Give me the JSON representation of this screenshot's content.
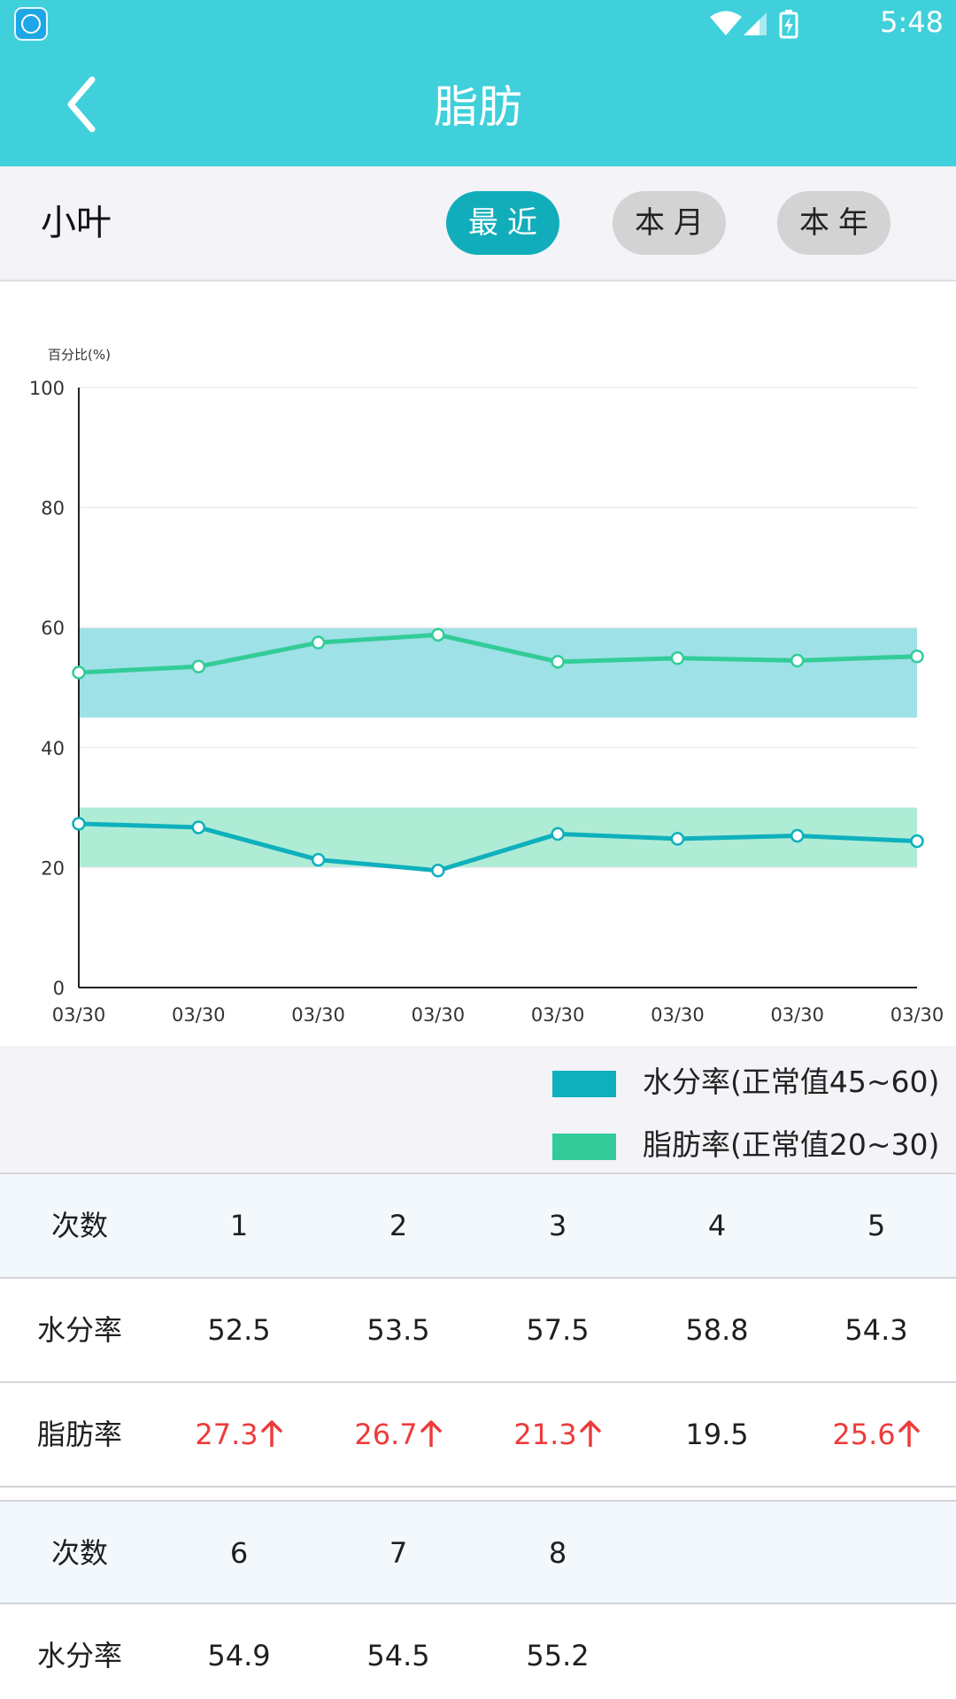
{
  "status_bar": {
    "time": "5:48",
    "icons": [
      "nox-app-icon",
      "wifi-icon",
      "signal-icon",
      "battery-charging-icon"
    ]
  },
  "header": {
    "title": "脂肪",
    "back_icon": "chevron-left-icon"
  },
  "user": {
    "name": "小叶"
  },
  "period_tabs": [
    {
      "label": "最近",
      "active": true
    },
    {
      "label": "本月",
      "active": false
    },
    {
      "label": "本年",
      "active": false
    }
  ],
  "colors": {
    "header_bg": "#3fd0db",
    "water_line": "#0fb0bd",
    "fat_line": "#33cc99",
    "water_band": "#9ee1e6",
    "fat_band": "#aeecd6",
    "alert_red": "#ee3b3b"
  },
  "chart_data": {
    "type": "line",
    "ylabel": "百分比(%)",
    "ylim": [
      0,
      100
    ],
    "yticks": [
      0,
      20,
      40,
      60,
      80,
      100
    ],
    "categories": [
      "03/30",
      "03/30",
      "03/30",
      "03/30",
      "03/30",
      "03/30",
      "03/30",
      "03/30"
    ],
    "series": [
      {
        "name": "水分率",
        "values": [
          52.5,
          53.5,
          57.5,
          58.8,
          54.3,
          54.9,
          54.5,
          55.2
        ],
        "color": "#33cc99",
        "normal_range": [
          45,
          60
        ],
        "band_color": "#9ee1e6"
      },
      {
        "name": "脂肪率",
        "values": [
          27.3,
          26.7,
          21.3,
          19.5,
          25.6,
          24.8,
          25.3,
          24.4
        ],
        "color": "#0fb0bd",
        "normal_range": [
          20,
          30
        ],
        "band_color": "#aeecd6"
      }
    ],
    "grid": true
  },
  "legend": [
    {
      "label": "水分率(正常值45~60)",
      "color": "#0fb0bd"
    },
    {
      "label": "脂肪率(正常值20~30)",
      "color": "#33cc99"
    }
  ],
  "table": {
    "row_labels": {
      "count": "次数",
      "water": "水分率",
      "fat": "脂肪率"
    },
    "block1": {
      "counts": [
        "1",
        "2",
        "3",
        "4",
        "5"
      ],
      "water": [
        "52.5",
        "53.5",
        "57.5",
        "58.8",
        "54.3"
      ],
      "fat": [
        {
          "value": "27.3",
          "up": true
        },
        {
          "value": "26.7",
          "up": true
        },
        {
          "value": "21.3",
          "up": true
        },
        {
          "value": "19.5",
          "up": false
        },
        {
          "value": "25.6",
          "up": true
        }
      ]
    },
    "block2": {
      "counts": [
        "6",
        "7",
        "8"
      ],
      "water": [
        "54.9",
        "54.5",
        "55.2"
      ]
    }
  }
}
